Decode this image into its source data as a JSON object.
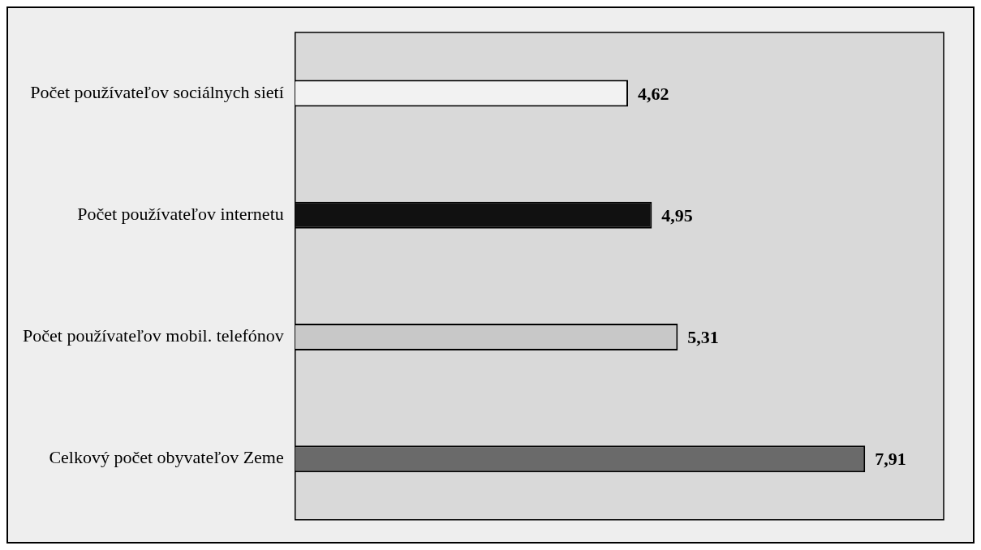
{
  "chart_data": {
    "type": "bar",
    "orientation": "horizontal",
    "categories": [
      "Počet používateľov sociálnych sietí",
      "Počet používateľov internetu",
      "Počet používateľov mobil. telefónov",
      "Celkový počet obyvateľov Zeme"
    ],
    "values": [
      4.62,
      4.95,
      5.31,
      7.91
    ],
    "colors": [
      "#f2f2f2",
      "#111111",
      "#c8c8c8",
      "#6a6a6a"
    ],
    "value_labels": [
      "4,62",
      "4,95",
      "5,31",
      "7,91"
    ],
    "tick_labels": "y",
    "legend": false
  }
}
